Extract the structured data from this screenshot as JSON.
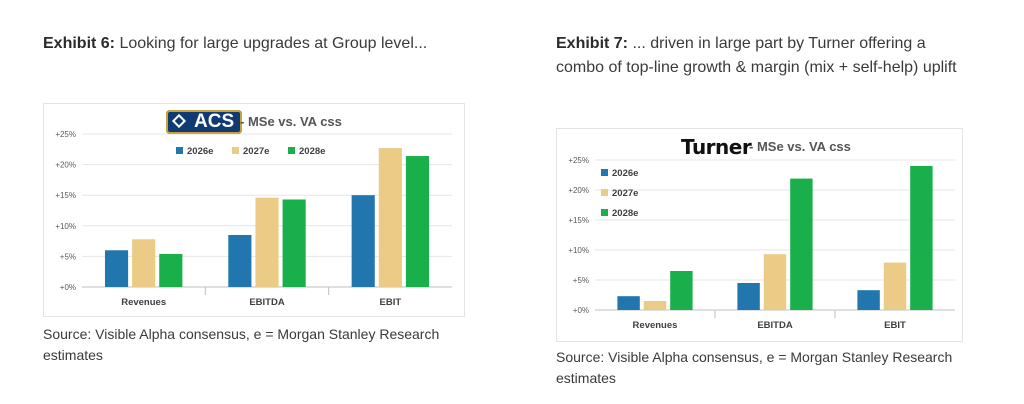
{
  "exhibit1": {
    "heading_label": "Exhibit 6:",
    "heading_text": "Looking for large upgrades at Group level...",
    "logo_text": "ACS",
    "chart_subtitle": "- MSe vs. VA css",
    "source": "Source: Visible Alpha consensus, e = Morgan Stanley Research estimates"
  },
  "exhibit2": {
    "heading_label": "Exhibit 7:",
    "heading_text": "... driven in large part by Turner offering a combo of top-line growth & margin (mix + self-help) uplift",
    "logo_text": "Turner",
    "chart_subtitle": "- MSe vs. VA css",
    "source": "Source: Visible Alpha consensus, e = Morgan Stanley Research estimates"
  },
  "colors": {
    "2026e": "#2176ae",
    "2027e": "#ebcb86",
    "2028e": "#19b04b"
  },
  "chart_data": [
    {
      "type": "bar",
      "categories": [
        "Revenues",
        "EBITDA",
        "EBIT"
      ],
      "series": [
        {
          "name": "2026e",
          "values": [
            6.0,
            8.5,
            15.0
          ]
        },
        {
          "name": "2027e",
          "values": [
            7.8,
            14.6,
            22.7
          ]
        },
        {
          "name": "2028e",
          "values": [
            5.4,
            14.3,
            21.4
          ]
        }
      ],
      "yticks": [
        "+0%",
        "+5%",
        "+10%",
        "+15%",
        "+20%",
        "+25%"
      ],
      "ylim": [
        0,
        25
      ],
      "legend": "top-horizontal",
      "grid": true
    },
    {
      "type": "bar",
      "categories": [
        "Revenues",
        "EBITDA",
        "EBIT"
      ],
      "series": [
        {
          "name": "2026e",
          "values": [
            2.3,
            4.5,
            3.3
          ]
        },
        {
          "name": "2027e",
          "values": [
            1.5,
            9.3,
            7.9
          ]
        },
        {
          "name": "2028e",
          "values": [
            6.5,
            21.9,
            24.0
          ]
        }
      ],
      "yticks": [
        "+0%",
        "+5%",
        "+10%",
        "+15%",
        "+20%",
        "+25%"
      ],
      "ylim": [
        0,
        25
      ],
      "legend": "top-left-vertical",
      "grid": true
    }
  ]
}
